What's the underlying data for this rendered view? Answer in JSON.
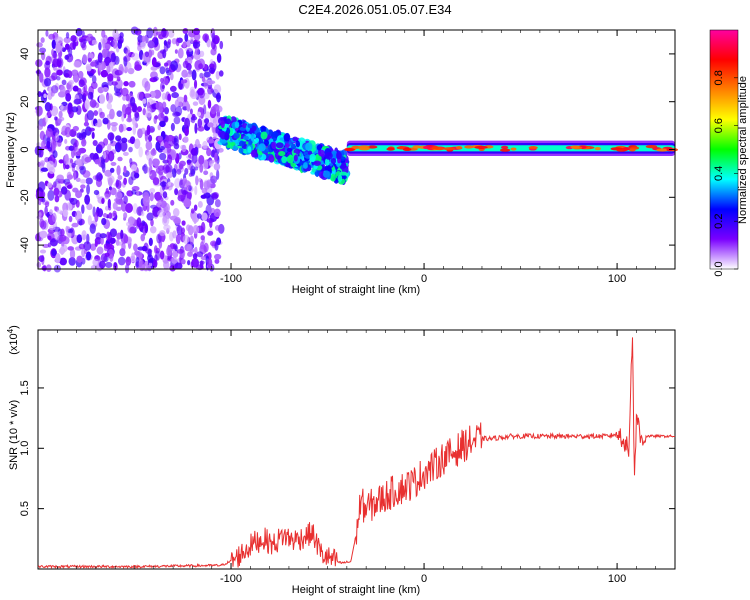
{
  "title": "C2E4.2026.051.05.07.E34",
  "chart_data": [
    {
      "type": "heatmap",
      "xlabel": "Height of straight line (km)",
      "ylabel": "Frequency (Hz)",
      "xlim": [
        -200,
        130
      ],
      "ylim": [
        -50,
        50
      ],
      "x_ticks": [
        -100,
        0,
        100
      ],
      "x_tick_labels": [
        "-100",
        "0",
        "100"
      ],
      "y_ticks": [
        -40,
        -20,
        0,
        20,
        40
      ],
      "y_tick_labels": [
        "-40",
        "-20",
        "0",
        "20",
        "40"
      ],
      "colorbar": {
        "label": "Normalized spectral amplitude",
        "range": [
          0,
          1
        ],
        "ticks": [
          0.0,
          0.2,
          0.4,
          0.6,
          0.8
        ],
        "tick_labels": [
          "0.0",
          "0.2",
          "0.4",
          "0.6",
          "0.8"
        ],
        "colormap": [
          "#ffffff",
          "#7a00ff",
          "#0000ff",
          "#00ffff",
          "#00ff00",
          "#ffff00",
          "#ff8000",
          "#ff0000",
          "#ff00a0"
        ]
      },
      "regions": [
        {
          "x_range": [
            -200,
            -105
          ],
          "freq_center": 0,
          "freq_halfwidth": 50,
          "amplitude": 0.1,
          "pattern": "noise"
        },
        {
          "x_range": [
            -105,
            -40
          ],
          "freq_center_start": 8,
          "freq_center_end": -8,
          "freq_halfwidth": 6,
          "amplitude": 0.35,
          "pattern": "descending"
        },
        {
          "x_range": [
            -40,
            130
          ],
          "freq_center": 0.5,
          "freq_halfwidth": 2,
          "amplitude": 0.5,
          "pattern": "line"
        }
      ],
      "grid": false
    },
    {
      "type": "line",
      "xlabel": "Height of straight line (km)",
      "ylabel": "SNR (10 * v/v)",
      "y_multiplier": "(x10",
      "y_multiplier_exp": "4",
      "y_multiplier_close": ")",
      "xlim": [
        -200,
        130
      ],
      "ylim": [
        0,
        1.98
      ],
      "x_ticks": [
        -100,
        0,
        100
      ],
      "x_tick_labels": [
        "-100",
        "0",
        "100"
      ],
      "y_ticks": [
        0.5,
        1.0,
        1.5
      ],
      "y_tick_labels": [
        "0.5",
        "1.0",
        "1.5"
      ],
      "color": "#e83030",
      "series": [
        {
          "x": [
            -200,
            -150,
            -105,
            -98,
            -93,
            -88,
            -83,
            -78,
            -73,
            -68,
            -63,
            -58,
            -53,
            -48,
            -43,
            -38,
            -35,
            -33,
            -30,
            -25,
            -20,
            -15,
            -10,
            -5,
            0,
            5,
            10,
            15,
            20,
            25,
            30,
            35,
            40,
            45,
            50,
            60,
            70,
            80,
            90,
            95,
            100,
            103,
            106,
            107,
            108,
            109,
            110,
            112,
            115,
            120,
            125,
            130
          ],
          "y": [
            0.02,
            0.02,
            0.03,
            0.08,
            0.15,
            0.22,
            0.25,
            0.2,
            0.28,
            0.24,
            0.26,
            0.3,
            0.12,
            0.08,
            0.05,
            0.06,
            0.3,
            0.55,
            0.5,
            0.55,
            0.6,
            0.65,
            0.68,
            0.72,
            0.8,
            0.85,
            0.92,
            0.96,
            1.02,
            1.06,
            1.08,
            1.08,
            1.09,
            1.1,
            1.1,
            1.1,
            1.1,
            1.1,
            1.1,
            1.1,
            1.12,
            1.1,
            0.95,
            1.5,
            1.98,
            0.7,
            1.3,
            1.08,
            1.1,
            1.1,
            1.1,
            1.1
          ]
        }
      ]
    }
  ]
}
